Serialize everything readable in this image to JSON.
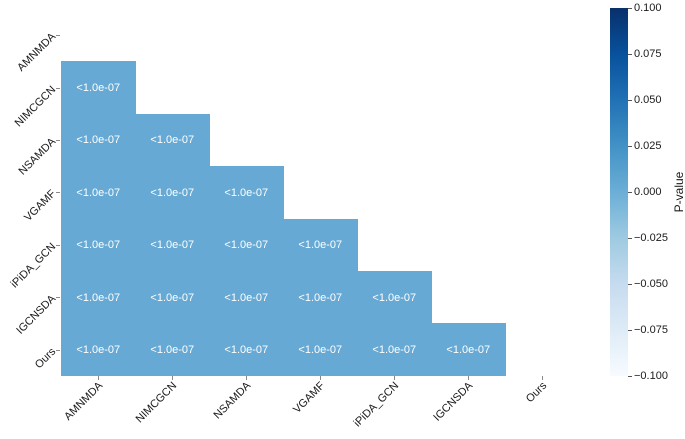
{
  "chart_data": {
    "type": "heatmap",
    "title": "",
    "description": "Lower-triangular pairwise p-value comparison matrix between methods",
    "rows": [
      "AMNMDA",
      "NIMCGCN",
      "NSAMDA",
      "VGAMF",
      "iPiDA_GCN",
      "IGCNSDA",
      "Ours"
    ],
    "cols": [
      "AMNMDA",
      "NIMCGCN",
      "NSAMDA",
      "VGAMF",
      "iPiDA_GCN",
      "IGCNSDA",
      "Ours"
    ],
    "matrix": [
      [
        null,
        null,
        null,
        null,
        null,
        null,
        null
      ],
      [
        "<1.0e-07",
        null,
        null,
        null,
        null,
        null,
        null
      ],
      [
        "<1.0e-07",
        "<1.0e-07",
        null,
        null,
        null,
        null,
        null
      ],
      [
        "<1.0e-07",
        "<1.0e-07",
        "<1.0e-07",
        null,
        null,
        null,
        null
      ],
      [
        "<1.0e-07",
        "<1.0e-07",
        "<1.0e-07",
        "<1.0e-07",
        null,
        null,
        null
      ],
      [
        "<1.0e-07",
        "<1.0e-07",
        "<1.0e-07",
        "<1.0e-07",
        "<1.0e-07",
        null,
        null
      ],
      [
        "<1.0e-07",
        "<1.0e-07",
        "<1.0e-07",
        "<1.0e-07",
        "<1.0e-07",
        "<1.0e-07",
        null
      ]
    ],
    "cell_color": "#66a9d4",
    "cell_text_color": "#ffffff",
    "colorbar": {
      "label": "P-value",
      "range": [
        -0.1,
        0.1
      ],
      "tick_labels": [
        "0.100",
        "0.075",
        "0.050",
        "0.025",
        "0.000",
        "−0.025",
        "−0.050",
        "−0.075",
        "−0.100"
      ],
      "colormap": "Blues",
      "colormap_stops_low_to_high": [
        "#f7fbff",
        "#deebf7",
        "#c6dbef",
        "#9ecae1",
        "#6baed6",
        "#4292c6",
        "#2171b5",
        "#08519c",
        "#08306b"
      ],
      "legend_position": "right"
    },
    "grid": false
  }
}
